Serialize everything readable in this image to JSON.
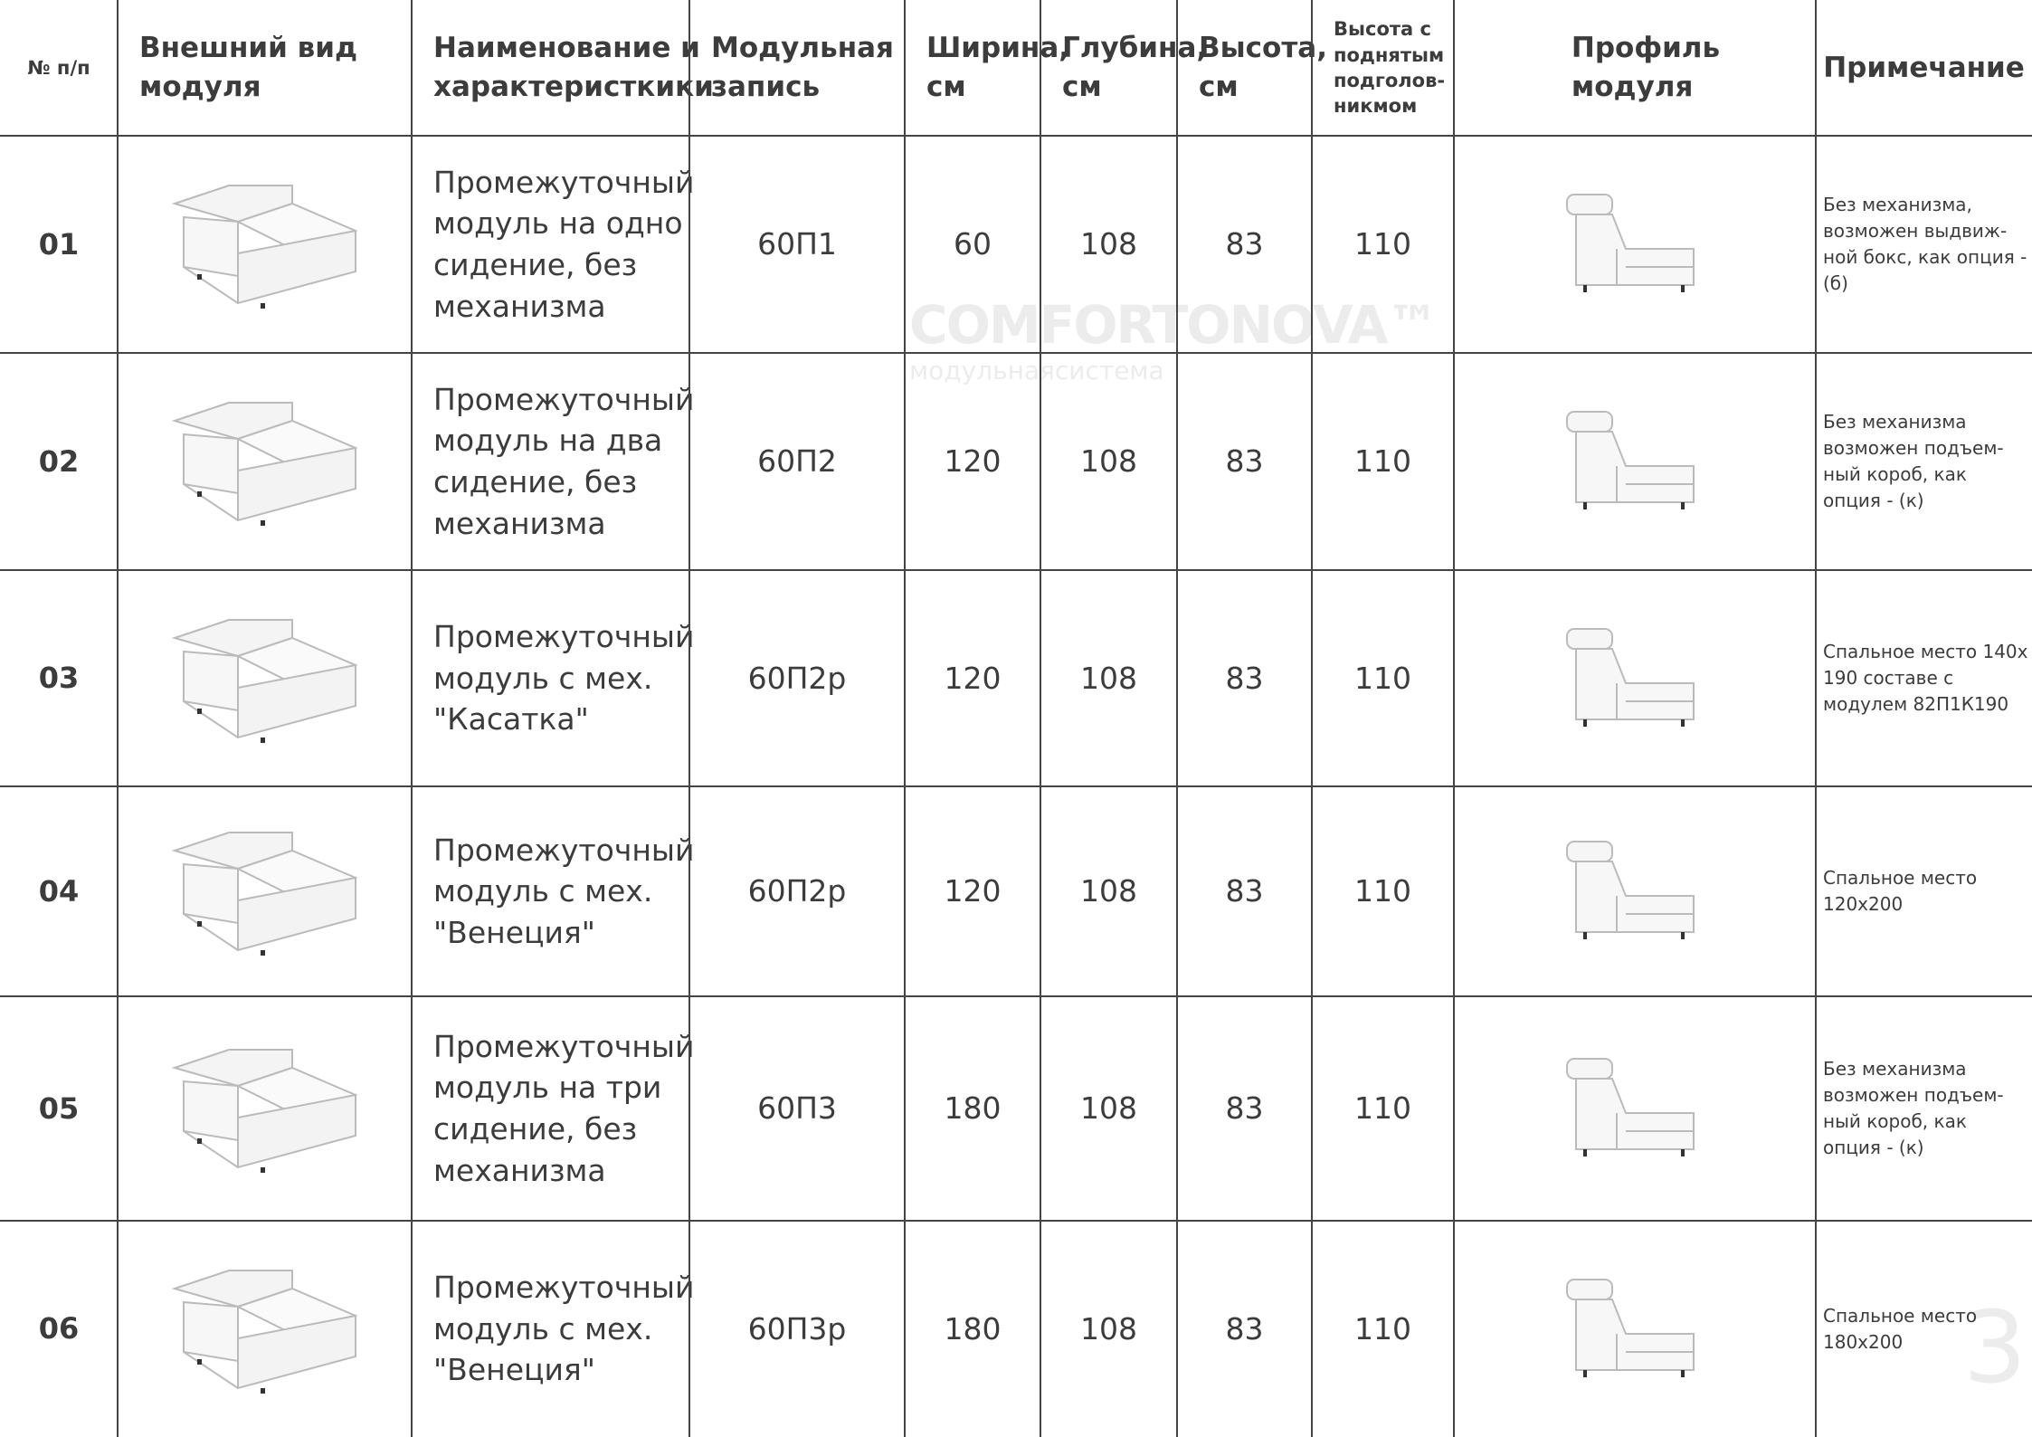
{
  "header": {
    "columns": [
      "№ п/п",
      "Внешний вид\nмодуля",
      "Наименование и\nхарактеристкики",
      "Модульная\nзапись",
      "Ширина,\nсм",
      "Глубина,\nсм",
      "Высота,\nсм",
      "Высота с\nподнятым\nподголов-\nникмом",
      "Профиль\nмодуля",
      "Примечание"
    ]
  },
  "table": {
    "rows": [
      {
        "no": "01",
        "name": "Промежуточный\nмодуль на одно\nсидение, без\nмеханизма",
        "code": "60П1",
        "width": 60,
        "depth": 108,
        "height": 83,
        "height_raised": 110,
        "note": "Без механизма,\nвозможен выдвиж-\nной бокс, как опция -\n(б)"
      },
      {
        "no": "02",
        "name": "Промежуточный\nмодуль на два\nсидение, без\nмеханизма",
        "code": "60П2",
        "width": 120,
        "depth": 108,
        "height": 83,
        "height_raised": 110,
        "note": "Без механизма\nвозможен подъем-\nный короб, как\nопция - (к)"
      },
      {
        "no": "03",
        "name": "Промежуточный\nмодуль с мех.\n\"Касатка\"",
        "code": "60П2р",
        "width": 120,
        "depth": 108,
        "height": 83,
        "height_raised": 110,
        "note": "Спальное место 140х\n190 составе с\nмодулем 82П1К190"
      },
      {
        "no": "04",
        "name": "Промежуточный\nмодуль с мех.\n\"Венеция\"",
        "code": "60П2р",
        "width": 120,
        "depth": 108,
        "height": 83,
        "height_raised": 110,
        "note": "Спальное место\n120х200"
      },
      {
        "no": "05",
        "name": "Промежуточный\nмодуль на три\nсидение, без\nмеханизма",
        "code": "60П3",
        "width": 180,
        "depth": 108,
        "height": 83,
        "height_raised": 110,
        "note": "Без механизма\nвозможен подъем-\nный короб, как\nопция - (к)"
      },
      {
        "no": "06",
        "name": "Промежуточный\nмодуль с мех.\n\"Венеция\"",
        "code": "60П3р",
        "width": 180,
        "depth": 108,
        "height": 83,
        "height_raised": 110,
        "note": "Спальное место\n180х200"
      }
    ]
  },
  "watermark": {
    "brand": "COMFORTONOVA™",
    "tagline": "модульнаясистема"
  },
  "page_number": "3"
}
